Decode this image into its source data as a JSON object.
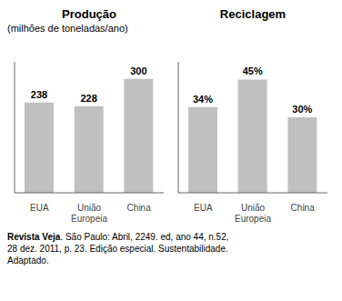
{
  "chart_data": [
    {
      "type": "bar",
      "title": "Produção",
      "subtitle": "(milhões de toneladas/ano)",
      "categories": [
        "EUA",
        "União\nEuropeia",
        "China"
      ],
      "values": [
        238,
        228,
        300
      ],
      "color": "#c0c0c0",
      "ylim": [
        0,
        345
      ],
      "yticks": [],
      "grid": false,
      "data_labels": true,
      "tick_labels": "x",
      "annotations": [
        "Revista Veja",
        ". São Paulo: Abril, 2249. ed, ano 44, n.52,\n28 dez. 2011, p. 23. Edição especial. Sustentabilidade.\nAdaptado."
      ]
    },
    {
      "type": "bar",
      "title": "Reciclagem",
      "categories": [
        "EUA",
        "União\nEuropeia",
        "China"
      ],
      "values": [
        34,
        45,
        30
      ],
      "value_labels": [
        "34%",
        "45%",
        "30%"
      ],
      "color": "#c0c0c0",
      "ylim": [
        0,
        52
      ],
      "yticks": [],
      "grid": false,
      "data_labels": true,
      "tick_labels": "x"
    }
  ]
}
